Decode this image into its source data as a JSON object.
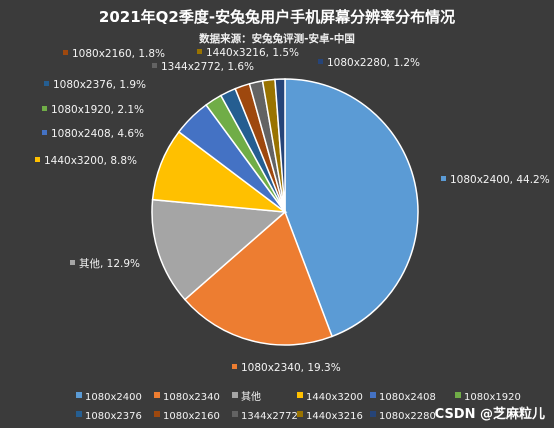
{
  "chart_data": {
    "type": "pie",
    "title": "2021年Q2季度-安兔兔用户手机屏幕分辨率分布情况",
    "subtitle": "数据来源：安兔兔评测-安卓-中国",
    "slices": [
      {
        "name": "1080x2400",
        "value": 44.2,
        "label": "1080x2400, 44.2%",
        "color": "#5b9bd5"
      },
      {
        "name": "1080x2340",
        "value": 19.3,
        "label": "1080x2340, 19.3%",
        "color": "#ed7d31"
      },
      {
        "name": "其他",
        "value": 12.9,
        "label": "其他, 12.9%",
        "color": "#a5a5a5"
      },
      {
        "name": "1440x3200",
        "value": 8.8,
        "label": "1440x3200, 8.8%",
        "color": "#ffc000"
      },
      {
        "name": "1080x2408",
        "value": 4.6,
        "label": "1080x2408, 4.6%",
        "color": "#4472c4"
      },
      {
        "name": "1080x1920",
        "value": 2.1,
        "label": "1080x1920, 2.1%",
        "color": "#70ad47"
      },
      {
        "name": "1080x2376",
        "value": 1.9,
        "label": "1080x2376, 1.9%",
        "color": "#255e91"
      },
      {
        "name": "1080x2160",
        "value": 1.8,
        "label": "1080x2160, 1.8%",
        "color": "#9e480e"
      },
      {
        "name": "1344x2772",
        "value": 1.6,
        "label": "1344x2772, 1.6%",
        "color": "#636363"
      },
      {
        "name": "1440x3216",
        "value": 1.5,
        "label": "1440x3216, 1.5%",
        "color": "#997300"
      },
      {
        "name": "1080x2280",
        "value": 1.2,
        "label": "1080x2280, 1.2%",
        "color": "#264478"
      }
    ],
    "legend_position": "bottom"
  },
  "watermark": "CSDN @芝麻粒儿"
}
